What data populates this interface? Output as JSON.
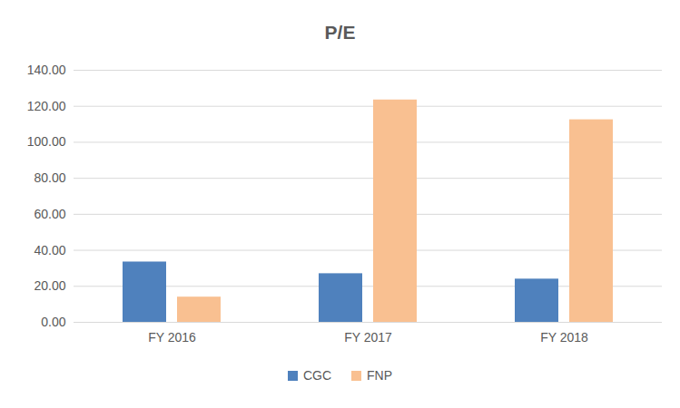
{
  "chart_data": {
    "type": "bar",
    "title": "P/E",
    "categories": [
      "FY 2016",
      "FY 2017",
      "FY 2018"
    ],
    "series": [
      {
        "name": "CGC",
        "color": "#4f81bd",
        "values": [
          33.5,
          27,
          24
        ]
      },
      {
        "name": "FNP",
        "color": "#f9c091",
        "values": [
          14,
          123.5,
          112.5
        ]
      }
    ],
    "ylim": [
      0,
      140
    ],
    "yticks": [
      {
        "value": 0,
        "label": "0.00"
      },
      {
        "value": 20,
        "label": "20.00"
      },
      {
        "value": 40,
        "label": "40.00"
      },
      {
        "value": 60,
        "label": "60.00"
      },
      {
        "value": 80,
        "label": "80.00"
      },
      {
        "value": 100,
        "label": "100.00"
      },
      {
        "value": 120,
        "label": "120.00"
      },
      {
        "value": 140,
        "label": "140.00"
      }
    ],
    "grid": true,
    "legend": "bottom"
  }
}
